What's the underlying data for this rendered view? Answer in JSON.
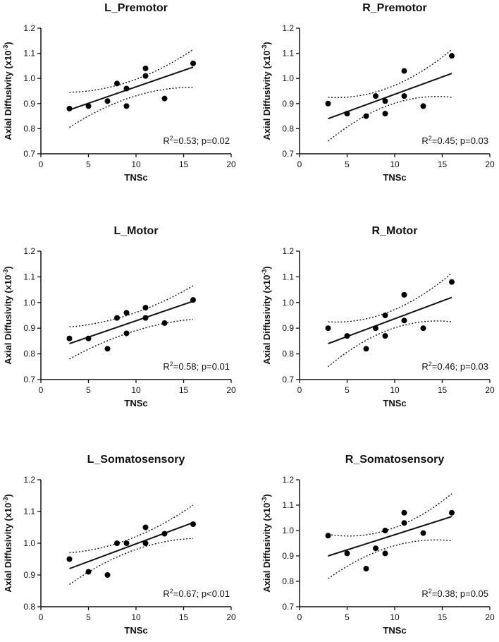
{
  "chart_data": [
    {
      "type": "scatter",
      "title": "L_Premotor",
      "xlabel": "TNSc",
      "ylabel": "Axial Diffusivity (x10",
      "ylabel_sup": "-3",
      "ylabel_close": ")",
      "xlim": [
        0,
        20
      ],
      "ylim": [
        0.7,
        1.2
      ],
      "xticks": [
        "0",
        "5",
        "10",
        "15",
        "20"
      ],
      "yticks": [
        "0.7",
        "0.8",
        "0.9",
        "1.0",
        "1.1",
        "1.2"
      ],
      "points": [
        [
          3,
          0.88
        ],
        [
          5,
          0.89
        ],
        [
          7,
          0.91
        ],
        [
          8,
          0.98
        ],
        [
          9,
          0.96
        ],
        [
          9,
          0.89
        ],
        [
          11,
          1.04
        ],
        [
          11,
          1.01
        ],
        [
          13,
          0.92
        ],
        [
          16,
          1.06
        ]
      ],
      "fit": [
        [
          3,
          0.875
        ],
        [
          16,
          1.045
        ]
      ],
      "ci_upper": [
        [
          3,
          0.945
        ],
        [
          9.5,
          0.99
        ],
        [
          16,
          1.115
        ]
      ],
      "ci_lower": [
        [
          3,
          0.805
        ],
        [
          9.5,
          0.925
        ],
        [
          16,
          0.965
        ]
      ],
      "stat_pre": "R",
      "stat_sup": "2",
      "stat_post": "=0.53; p=0.02"
    },
    {
      "type": "scatter",
      "title": "R_Premotor",
      "xlabel": "TNSc",
      "ylabel": "Axial Diffusivity (x10",
      "ylabel_sup": "-3",
      "ylabel_close": ")",
      "xlim": [
        0,
        20
      ],
      "ylim": [
        0.7,
        1.2
      ],
      "xticks": [
        "0",
        "5",
        "10",
        "15",
        "20"
      ],
      "yticks": [
        "0.7",
        "0.8",
        "0.9",
        "1.0",
        "1.1",
        "1.2"
      ],
      "points": [
        [
          3,
          0.9
        ],
        [
          5,
          0.86
        ],
        [
          7,
          0.85
        ],
        [
          8,
          0.93
        ],
        [
          9,
          0.91
        ],
        [
          9,
          0.86
        ],
        [
          11,
          1.03
        ],
        [
          11,
          0.93
        ],
        [
          13,
          0.89
        ],
        [
          16,
          1.09
        ]
      ],
      "fit": [
        [
          3,
          0.84
        ],
        [
          16,
          1.02
        ]
      ],
      "ci_upper": [
        [
          3,
          0.925
        ],
        [
          9.5,
          0.965
        ],
        [
          16,
          1.115
        ]
      ],
      "ci_lower": [
        [
          3,
          0.75
        ],
        [
          9.5,
          0.895
        ],
        [
          16,
          0.925
        ]
      ],
      "stat_pre": "R",
      "stat_sup": "2",
      "stat_post": "=0.45; p=0.03"
    },
    {
      "type": "scatter",
      "title": "L_Motor",
      "xlabel": "TNSc",
      "ylabel": "Axial Diffusivity (x10",
      "ylabel_sup": "-3",
      "ylabel_close": ")",
      "xlim": [
        0,
        20
      ],
      "ylim": [
        0.7,
        1.2
      ],
      "xticks": [
        "0",
        "5",
        "10",
        "15",
        "20"
      ],
      "yticks": [
        "0.7",
        "0.8",
        "0.9",
        "1.0",
        "1.1",
        "1.2"
      ],
      "points": [
        [
          3,
          0.86
        ],
        [
          5,
          0.86
        ],
        [
          7,
          0.82
        ],
        [
          8,
          0.94
        ],
        [
          9,
          0.96
        ],
        [
          9,
          0.88
        ],
        [
          11,
          0.98
        ],
        [
          11,
          0.94
        ],
        [
          13,
          0.92
        ],
        [
          16,
          1.01
        ]
      ],
      "fit": [
        [
          3,
          0.84
        ],
        [
          16,
          1.005
        ]
      ],
      "ci_upper": [
        [
          3,
          0.905
        ],
        [
          9.5,
          0.955
        ],
        [
          16,
          1.065
        ]
      ],
      "ci_lower": [
        [
          3,
          0.78
        ],
        [
          9.5,
          0.885
        ],
        [
          16,
          0.935
        ]
      ],
      "stat_pre": "R",
      "stat_sup": "2",
      "stat_post": "=0.58; p=0.01"
    },
    {
      "type": "scatter",
      "title": "R_Motor",
      "xlabel": "TNSc",
      "ylabel": "Axial Diffusivity (x10",
      "ylabel_sup": "-3",
      "ylabel_close": ")",
      "xlim": [
        0,
        20
      ],
      "ylim": [
        0.7,
        1.2
      ],
      "xticks": [
        "0",
        "5",
        "10",
        "15",
        "20"
      ],
      "yticks": [
        "0.7",
        "0.8",
        "0.9",
        "1.0",
        "1.1",
        "1.2"
      ],
      "points": [
        [
          3,
          0.9
        ],
        [
          5,
          0.87
        ],
        [
          7,
          0.82
        ],
        [
          8,
          0.9
        ],
        [
          9,
          0.95
        ],
        [
          9,
          0.87
        ],
        [
          11,
          1.03
        ],
        [
          11,
          0.93
        ],
        [
          13,
          0.9
        ],
        [
          16,
          1.08
        ]
      ],
      "fit": [
        [
          3,
          0.84
        ],
        [
          16,
          1.02
        ]
      ],
      "ci_upper": [
        [
          3,
          0.925
        ],
        [
          9.5,
          0.965
        ],
        [
          16,
          1.115
        ]
      ],
      "ci_lower": [
        [
          3,
          0.75
        ],
        [
          9.5,
          0.895
        ],
        [
          16,
          0.925
        ]
      ],
      "stat_pre": "R",
      "stat_sup": "2",
      "stat_post": "=0.46; p=0.03"
    },
    {
      "type": "scatter",
      "title": "L_Somatosensory",
      "xlabel": "TNSc",
      "ylabel": "Axial Diffusivity (x10",
      "ylabel_sup": "-3",
      "ylabel_close": ")",
      "xlim": [
        0,
        20
      ],
      "ylim": [
        0.8,
        1.2
      ],
      "xticks": [
        "0",
        "5",
        "10",
        "15",
        "20"
      ],
      "yticks": [
        "0.8",
        "0.9",
        "1.0",
        "1.1",
        "1.2"
      ],
      "points": [
        [
          3,
          0.95
        ],
        [
          5,
          0.91
        ],
        [
          7,
          0.9
        ],
        [
          8,
          1.0
        ],
        [
          9,
          1.0
        ],
        [
          11,
          1.05
        ],
        [
          11,
          1.0
        ],
        [
          13,
          1.03
        ],
        [
          16,
          1.06
        ]
      ],
      "fit": [
        [
          3,
          0.92
        ],
        [
          16,
          1.065
        ]
      ],
      "ci_upper": [
        [
          3,
          0.97
        ],
        [
          9.5,
          1.015
        ],
        [
          16,
          1.12
        ]
      ],
      "ci_lower": [
        [
          3,
          0.87
        ],
        [
          9.5,
          0.975
        ],
        [
          16,
          1.015
        ]
      ],
      "stat_pre": "R",
      "stat_sup": "2",
      "stat_post": "=0.67; p<0.01"
    },
    {
      "type": "scatter",
      "title": "R_Somatosensory",
      "xlabel": "TNSc",
      "ylabel": "Axial Diffusivity (x10",
      "ylabel_sup": "-3",
      "ylabel_close": ")",
      "xlim": [
        0,
        20
      ],
      "ylim": [
        0.7,
        1.2
      ],
      "xticks": [
        "0",
        "5",
        "10",
        "15",
        "20"
      ],
      "yticks": [
        "0.7",
        "0.8",
        "0.9",
        "1.0",
        "1.1",
        "1.2"
      ],
      "points": [
        [
          3,
          0.98
        ],
        [
          5,
          0.91
        ],
        [
          7,
          0.85
        ],
        [
          8,
          0.93
        ],
        [
          9,
          1.0
        ],
        [
          9,
          0.91
        ],
        [
          11,
          1.07
        ],
        [
          11,
          1.03
        ],
        [
          13,
          0.99
        ],
        [
          16,
          1.07
        ]
      ],
      "fit": [
        [
          3,
          0.9
        ],
        [
          16,
          1.055
        ]
      ],
      "ci_upper": [
        [
          3,
          0.985
        ],
        [
          9.5,
          1.005
        ],
        [
          16,
          1.145
        ]
      ],
      "ci_lower": [
        [
          3,
          0.81
        ],
        [
          9.5,
          0.935
        ],
        [
          16,
          0.96
        ]
      ],
      "stat_pre": "R",
      "stat_sup": "2",
      "stat_post": "=0.38; p=0.05"
    }
  ]
}
